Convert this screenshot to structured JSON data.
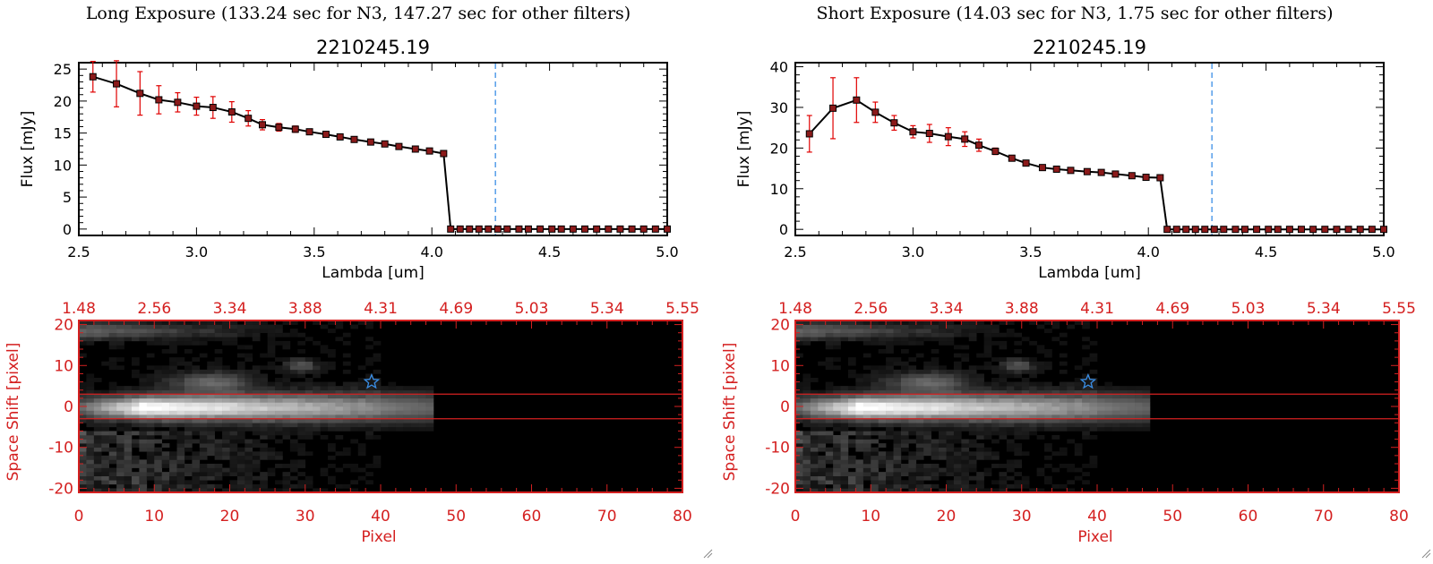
{
  "colors": {
    "axis_black": "#000000",
    "error_red": "#e00000",
    "marker_fill": "#8b1a1a",
    "cutoff_blue": "#3a8ee6",
    "image_axis_red": "#d42020",
    "star_blue": "#3a8ee6"
  },
  "icons": {
    "source_marker": "star-icon",
    "corner": "resize-grip-icon"
  },
  "panels": [
    {
      "id": "long",
      "exposure_title": "Long Exposure (133.24 sec for N3, 147.27 sec for other filters)",
      "plot_title": "2210245.19"
    },
    {
      "id": "short",
      "exposure_title": "Short Exposure (14.03 sec for N3, 1.75 sec for other filters)",
      "plot_title": "2210245.19"
    }
  ],
  "chart_data": [
    {
      "type": "line",
      "panel": "long",
      "title": "2210245.19",
      "xlabel": "Lambda [um]",
      "ylabel": "Flux [mJy]",
      "xlim": [
        2.5,
        5.0
      ],
      "ylim": [
        -1,
        26
      ],
      "xticks": [
        "2.5",
        "3.0",
        "3.5",
        "4.0",
        "4.5",
        "5.0"
      ],
      "yticks": [
        "0",
        "5",
        "10",
        "15",
        "20",
        "25"
      ],
      "cutoff_line_x": 4.27,
      "series": [
        {
          "x": [
            2.56,
            2.66,
            2.76,
            2.84,
            2.92,
            3.0,
            3.07,
            3.15,
            3.22,
            3.28,
            3.35,
            3.42,
            3.48,
            3.55,
            3.61,
            3.67,
            3.74,
            3.8,
            3.86,
            3.93,
            3.99,
            4.05,
            4.08,
            4.12,
            4.16,
            4.2,
            4.24,
            4.28,
            4.32,
            4.37,
            4.41,
            4.46,
            4.51,
            4.55,
            4.6,
            4.65,
            4.7,
            4.75,
            4.8,
            4.85,
            4.9,
            4.95,
            5.0
          ],
          "y": [
            23.8,
            22.7,
            21.2,
            20.2,
            19.8,
            19.2,
            19.0,
            18.3,
            17.3,
            16.3,
            15.9,
            15.6,
            15.2,
            14.8,
            14.4,
            14.0,
            13.6,
            13.3,
            12.9,
            12.5,
            12.2,
            11.8,
            0,
            0,
            0,
            0,
            0,
            0,
            0,
            0,
            0,
            0,
            0,
            0,
            0,
            0,
            0,
            0,
            0,
            0,
            0,
            0,
            0
          ],
          "yerr": [
            2.4,
            3.6,
            3.4,
            2.2,
            1.5,
            1.4,
            1.7,
            1.6,
            1.2,
            0.8,
            0.6,
            0.5,
            0,
            0,
            0,
            0,
            0,
            0,
            0,
            0,
            0,
            0,
            0,
            0,
            0,
            0,
            0,
            0,
            0,
            0,
            0,
            0,
            0,
            0,
            0,
            0,
            0,
            0,
            0,
            0,
            0,
            0,
            0
          ]
        }
      ]
    },
    {
      "type": "line",
      "panel": "short",
      "title": "2210245.19",
      "xlabel": "Lambda [um]",
      "ylabel": "Flux [mJy]",
      "xlim": [
        2.5,
        5.0
      ],
      "ylim": [
        -1.5,
        41
      ],
      "xticks": [
        "2.5",
        "3.0",
        "3.5",
        "4.0",
        "4.5",
        "5.0"
      ],
      "yticks": [
        "0",
        "10",
        "20",
        "30",
        "40"
      ],
      "cutoff_line_x": 4.27,
      "series": [
        {
          "x": [
            2.56,
            2.66,
            2.76,
            2.84,
            2.92,
            3.0,
            3.07,
            3.15,
            3.22,
            3.28,
            3.35,
            3.42,
            3.48,
            3.55,
            3.61,
            3.67,
            3.74,
            3.8,
            3.86,
            3.93,
            3.99,
            4.05,
            4.08,
            4.12,
            4.16,
            4.2,
            4.24,
            4.28,
            4.32,
            4.37,
            4.41,
            4.46,
            4.51,
            4.55,
            4.6,
            4.65,
            4.7,
            4.75,
            4.8,
            4.85,
            4.9,
            4.95,
            5.0
          ],
          "y": [
            23.5,
            29.8,
            31.8,
            28.8,
            26.2,
            24.0,
            23.6,
            22.8,
            22.2,
            20.7,
            19.2,
            17.5,
            16.3,
            15.2,
            14.8,
            14.5,
            14.2,
            14.0,
            13.6,
            13.2,
            12.8,
            12.7,
            0,
            0,
            0,
            0,
            0,
            0,
            0,
            0,
            0,
            0,
            0,
            0,
            0,
            0,
            0,
            0,
            0,
            0,
            0,
            0,
            0
          ],
          "yerr": [
            4.5,
            7.5,
            5.5,
            2.5,
            1.8,
            1.5,
            2.2,
            2.2,
            1.8,
            1.5,
            0.8,
            0,
            0,
            0,
            0,
            0,
            0,
            0,
            0,
            0,
            0,
            0,
            0,
            0,
            0,
            0,
            0,
            0,
            0,
            0,
            0,
            0,
            0,
            0,
            0,
            0,
            0,
            0,
            0,
            0,
            0,
            0,
            0
          ]
        }
      ]
    },
    {
      "type": "heatmap",
      "panel": "long",
      "xlabel": "Pixel",
      "ylabel": "Space Shift [pixel]",
      "xlim": [
        0,
        80
      ],
      "ylim": [
        -21,
        21
      ],
      "xticks": [
        "0",
        "10",
        "20",
        "30",
        "40",
        "50",
        "60",
        "70",
        "80"
      ],
      "yticks": [
        "-20",
        "-10",
        "0",
        "10",
        "20"
      ],
      "top_axis_ticks": [
        "1.48",
        "2.56",
        "3.34",
        "3.88",
        "4.31",
        "4.69",
        "5.03",
        "5.34",
        "5.55"
      ],
      "aperture_lines_y": [
        -3,
        3
      ],
      "source_marker": {
        "x": 38.8,
        "y": 6
      }
    },
    {
      "type": "heatmap",
      "panel": "short",
      "xlabel": "Pixel",
      "ylabel": "Space Shift [pixel]",
      "xlim": [
        0,
        80
      ],
      "ylim": [
        -21,
        21
      ],
      "xticks": [
        "0",
        "10",
        "20",
        "30",
        "40",
        "50",
        "60",
        "70",
        "80"
      ],
      "yticks": [
        "-20",
        "-10",
        "0",
        "10",
        "20"
      ],
      "top_axis_ticks": [
        "1.48",
        "2.56",
        "3.34",
        "3.88",
        "4.31",
        "4.69",
        "5.03",
        "5.34",
        "5.55"
      ],
      "aperture_lines_y": [
        -3,
        3
      ],
      "source_marker": {
        "x": 38.8,
        "y": 6
      }
    }
  ]
}
